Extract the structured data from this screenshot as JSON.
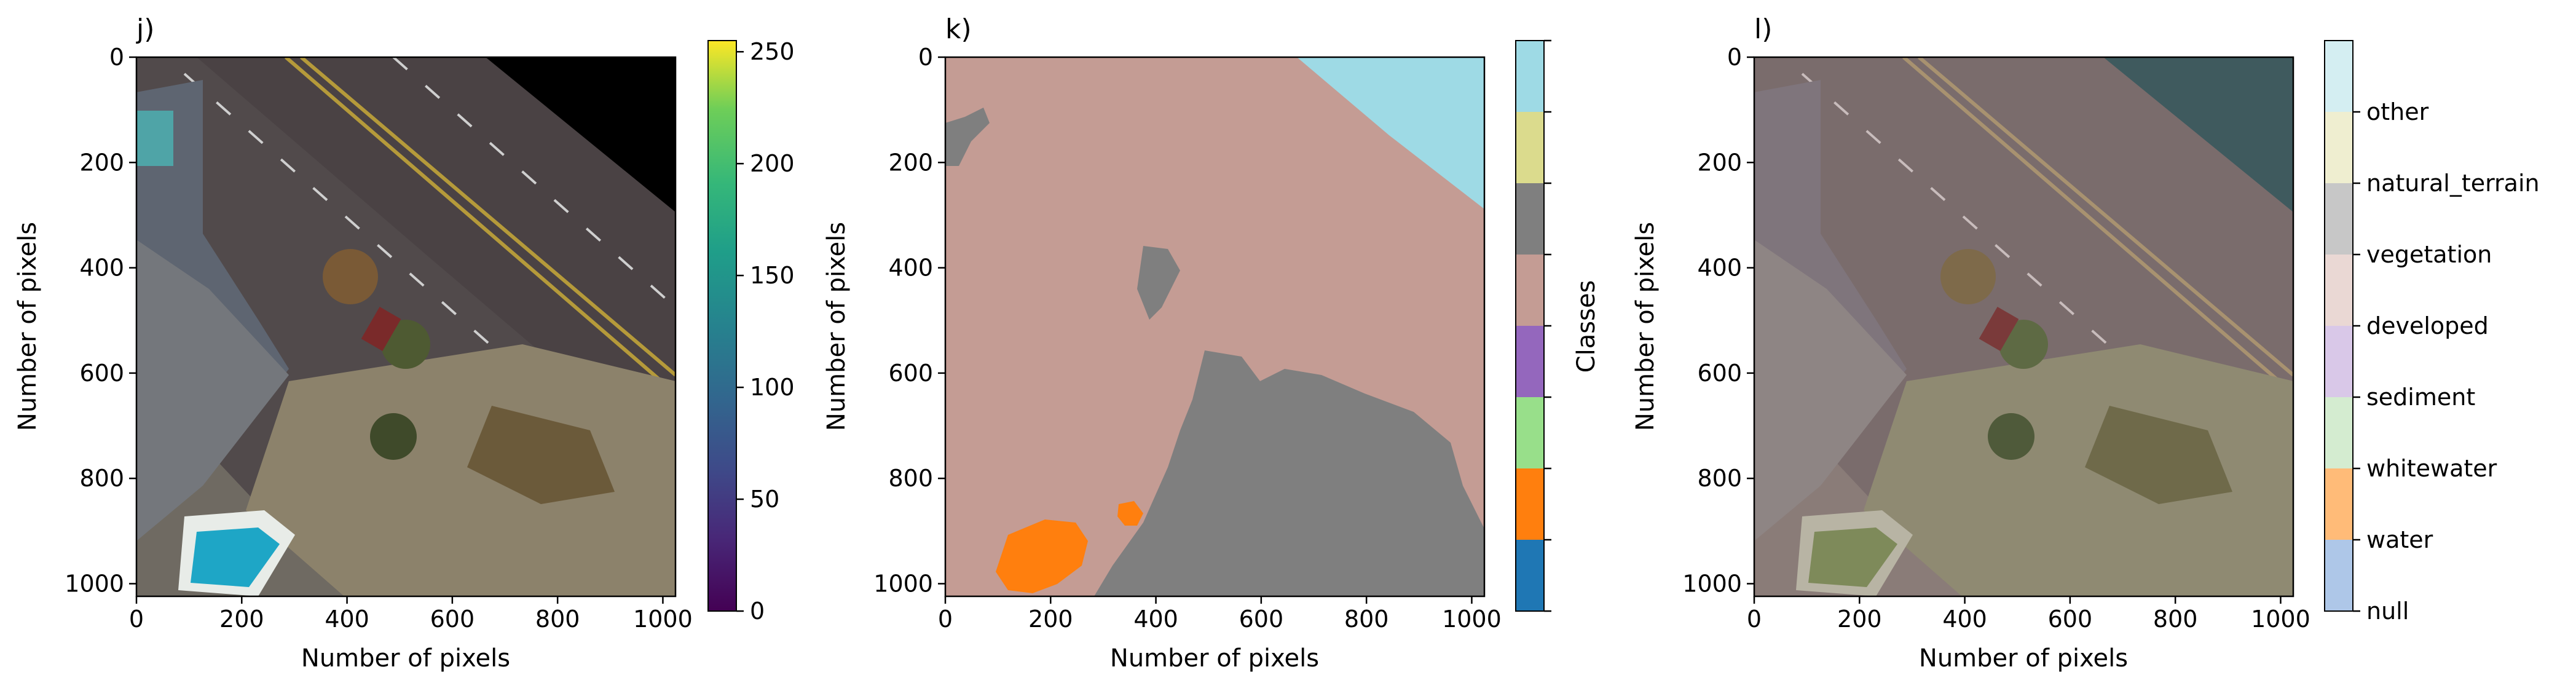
{
  "panels": [
    {
      "label": "j)",
      "xlabel": "Number of pixels",
      "ylabel": "Number of pixels",
      "x_ticks": [
        "0",
        "200",
        "400",
        "600",
        "800",
        "1000"
      ],
      "y_ticks": [
        "0",
        "200",
        "400",
        "600",
        "800",
        "1000"
      ],
      "image": "aerial-rgb-road-beach",
      "colorbar": {
        "ticks": [
          "0",
          "50",
          "100",
          "150",
          "200",
          "250"
        ],
        "cmap": "viridis",
        "range": [
          0,
          255
        ]
      }
    },
    {
      "label": "k)",
      "xlabel": "Number of pixels",
      "ylabel": "Number of pixels",
      "x_ticks": [
        "0",
        "200",
        "400",
        "600",
        "800",
        "1000"
      ],
      "y_ticks": [
        "0",
        "200",
        "400",
        "600",
        "800",
        "1000"
      ],
      "image": "class-segmentation-mask",
      "colorbar": {
        "label": "Classes",
        "colors": [
          "#1f77b4",
          "#ff7f0e",
          "#98df8a",
          "#9467bd",
          "#c49c94",
          "#7f7f7f",
          "#dbdb8d",
          "#9edae5"
        ]
      }
    },
    {
      "label": "l)",
      "xlabel": "Number of pixels",
      "ylabel": "Number of pixels",
      "x_ticks": [
        "0",
        "200",
        "400",
        "600",
        "800",
        "1000"
      ],
      "y_ticks": [
        "0",
        "200",
        "400",
        "600",
        "800",
        "1000"
      ],
      "image": "aerial-with-class-overlay",
      "colorbar": {
        "classes": [
          "null",
          "water",
          "whitewater",
          "sediment",
          "developed",
          "vegetation",
          "natural_terrain",
          "other"
        ],
        "colors": [
          "#aec7e8",
          "#ffbb78",
          "#d4ecd0",
          "#d9c8e8",
          "#ead8d4",
          "#c7c7c7",
          "#efeed0",
          "#d4eef2"
        ]
      }
    }
  ]
}
